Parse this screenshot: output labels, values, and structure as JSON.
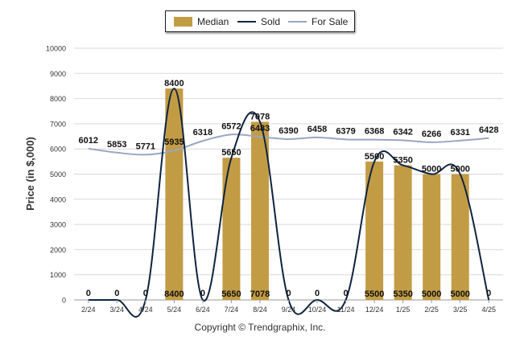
{
  "legend": {
    "median_label": "Median",
    "sold_label": "Sold",
    "for_sale_label": "For Sale"
  },
  "copyright": "Copyright © Trendgraphix, Inc.",
  "colors": {
    "median": "#c29c45",
    "sold": "#0f2340",
    "for_sale": "#9aa5c2",
    "grid": "#d9d9d9"
  },
  "chart_data": {
    "type": "bar",
    "categories": [
      "2/24",
      "3/24",
      "4/24",
      "5/24",
      "6/24",
      "7/24",
      "8/24",
      "9/24",
      "10/24",
      "11/24",
      "12/24",
      "1/25",
      "2/25",
      "3/25",
      "4/25"
    ],
    "ylabel": "Price (in $,000)",
    "ylim": [
      0,
      10000
    ],
    "yticks": [
      "0",
      "1000",
      "2000",
      "3000",
      "4000",
      "5000",
      "6000",
      "7000",
      "8000",
      "9000",
      "10000"
    ],
    "grid": true,
    "legend_position": "top-center",
    "series": [
      {
        "name": "Median",
        "type": "bar",
        "values": [
          0,
          0,
          0,
          8400,
          0,
          5650,
          7078,
          0,
          0,
          0,
          5500,
          5350,
          5000,
          5000,
          0
        ]
      },
      {
        "name": "Sold",
        "type": "line",
        "values": [
          0,
          0,
          0,
          8400,
          0,
          5650,
          7078,
          0,
          0,
          0,
          5500,
          5350,
          5000,
          5000,
          0
        ]
      },
      {
        "name": "For Sale",
        "type": "line",
        "values": [
          6012,
          5853,
          5771,
          5935,
          6318,
          6572,
          6483,
          6390,
          6458,
          6379,
          6368,
          6342,
          6266,
          6331,
          6428
        ]
      }
    ]
  }
}
